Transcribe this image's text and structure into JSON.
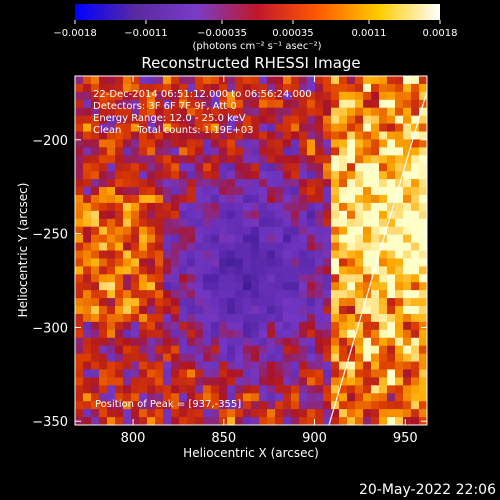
{
  "chart_data": {
    "type": "heatmap",
    "title": "Reconstructed RHESSI Image",
    "xlabel": "Heliocentric X (arcsec)",
    "ylabel": "Heliocentric Y (arcsec)",
    "xlim": [
      768,
      962
    ],
    "ylim": [
      -352,
      -166
    ],
    "x_ticks": [
      800,
      850,
      900,
      950
    ],
    "y_ticks": [
      -200,
      -250,
      -300,
      -350
    ],
    "x_tick_labels": [
      "800",
      "850",
      "900",
      "950"
    ],
    "y_tick_labels": [
      "−200",
      "−250",
      "−300",
      "−350"
    ],
    "colorbar": {
      "range": [
        -0.0018,
        0.0018
      ],
      "tick_values": [
        -0.0018,
        -0.0011,
        -0.00035,
        0.00035,
        0.0011,
        0.0018
      ],
      "tick_labels": [
        "−0.0018",
        "−0.0011",
        "−0.00035",
        "0.00035",
        "0.0011",
        "0.0018"
      ],
      "units_label": "(photons cm⁻² s⁻¹ asec⁻²)",
      "colors": [
        "#0000ff",
        "#5a2aa0",
        "#7a3cc8",
        "#c0182a",
        "#ff5a00",
        "#ffcc00",
        "#ffffff"
      ]
    },
    "annotations": [
      "22-Dec-2014 06:51:12.000 to 06:56:24.000",
      "Detectors: 3F 6F 7F 9F, Att 0",
      "Energy Range: 12.0 - 25.0 keV",
      "Clean     Total counts: 1.19E+03"
    ],
    "peak_label": "Position of Peak = [937,-355]",
    "peak_position": [
      937,
      -355
    ],
    "limb_line": [
      [
        908,
        -352
      ],
      [
        962,
        -174
      ]
    ],
    "timestamp": "20-May-2022 22:06"
  }
}
